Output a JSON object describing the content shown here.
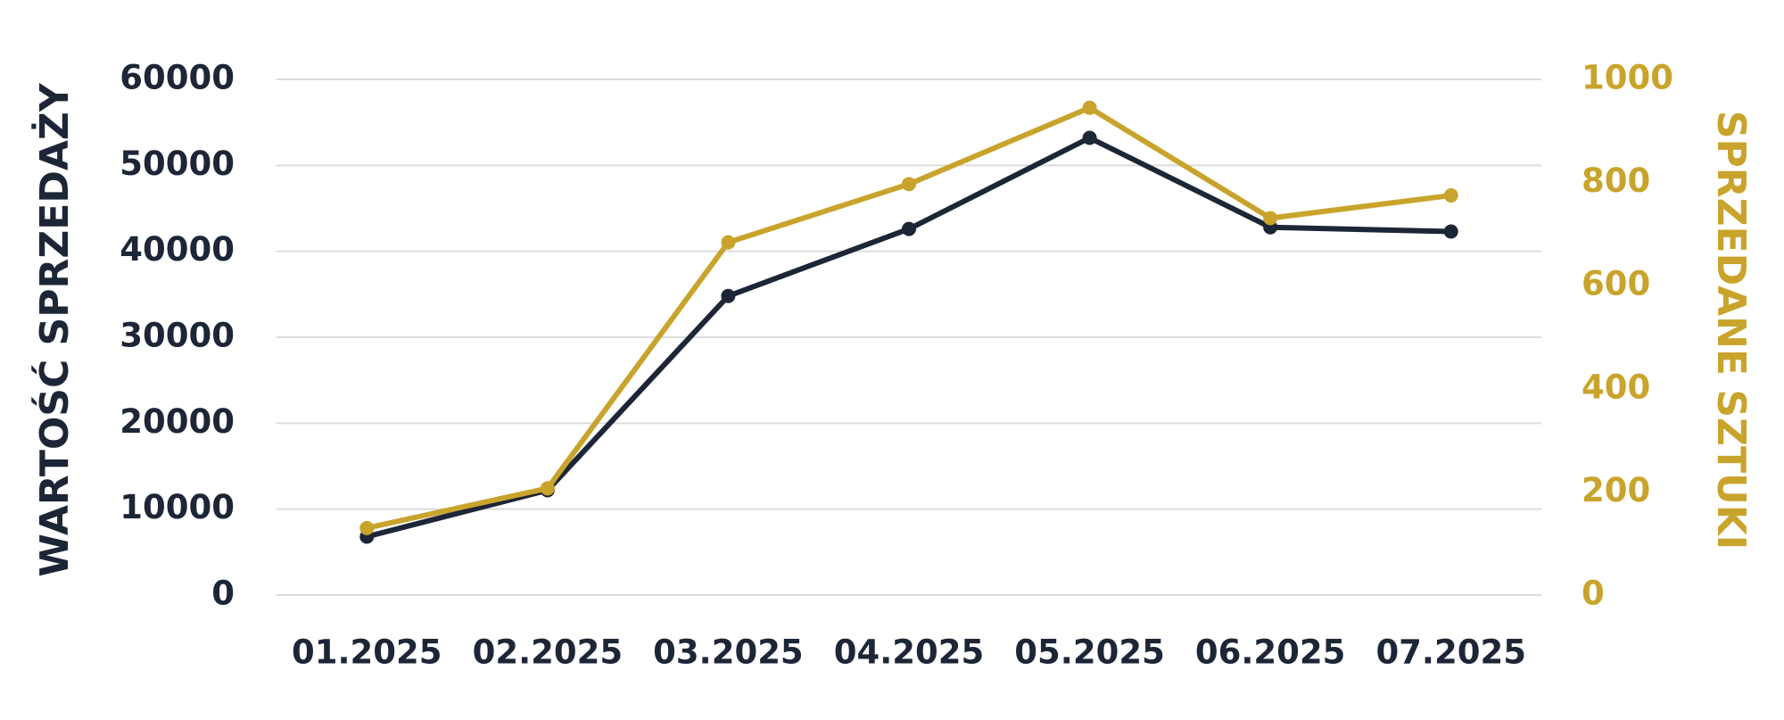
{
  "chart_data": {
    "type": "line",
    "y_label": "WARTOŚĆ SPRZEDAŻY",
    "y2_label": "SPRZEDANE SZTUKI",
    "categories": [
      "01.2025",
      "02.2025",
      "03.2025",
      "04.2025",
      "05.2025",
      "06.2025",
      "07.2025"
    ],
    "series": [
      {
        "color": "#1c2636",
        "values": [
          6800,
          12200,
          34800,
          42600,
          53200,
          42800,
          42300
        ]
      },
      {
        "color": "#c9a42c",
        "axis": "y2",
        "values": [
          130,
          207,
          684,
          797,
          945,
          731,
          775
        ]
      }
    ],
    "ylim": [
      0,
      60000
    ],
    "yticks": [
      0,
      10000,
      20000,
      30000,
      40000,
      50000,
      60000
    ],
    "y2lim": [
      0,
      1000
    ],
    "y2ticks": [
      0,
      200,
      400,
      600,
      800,
      1000
    ],
    "y_label_color": "#1c2636",
    "y2_label_color": "#c9a42c",
    "grid": true
  }
}
